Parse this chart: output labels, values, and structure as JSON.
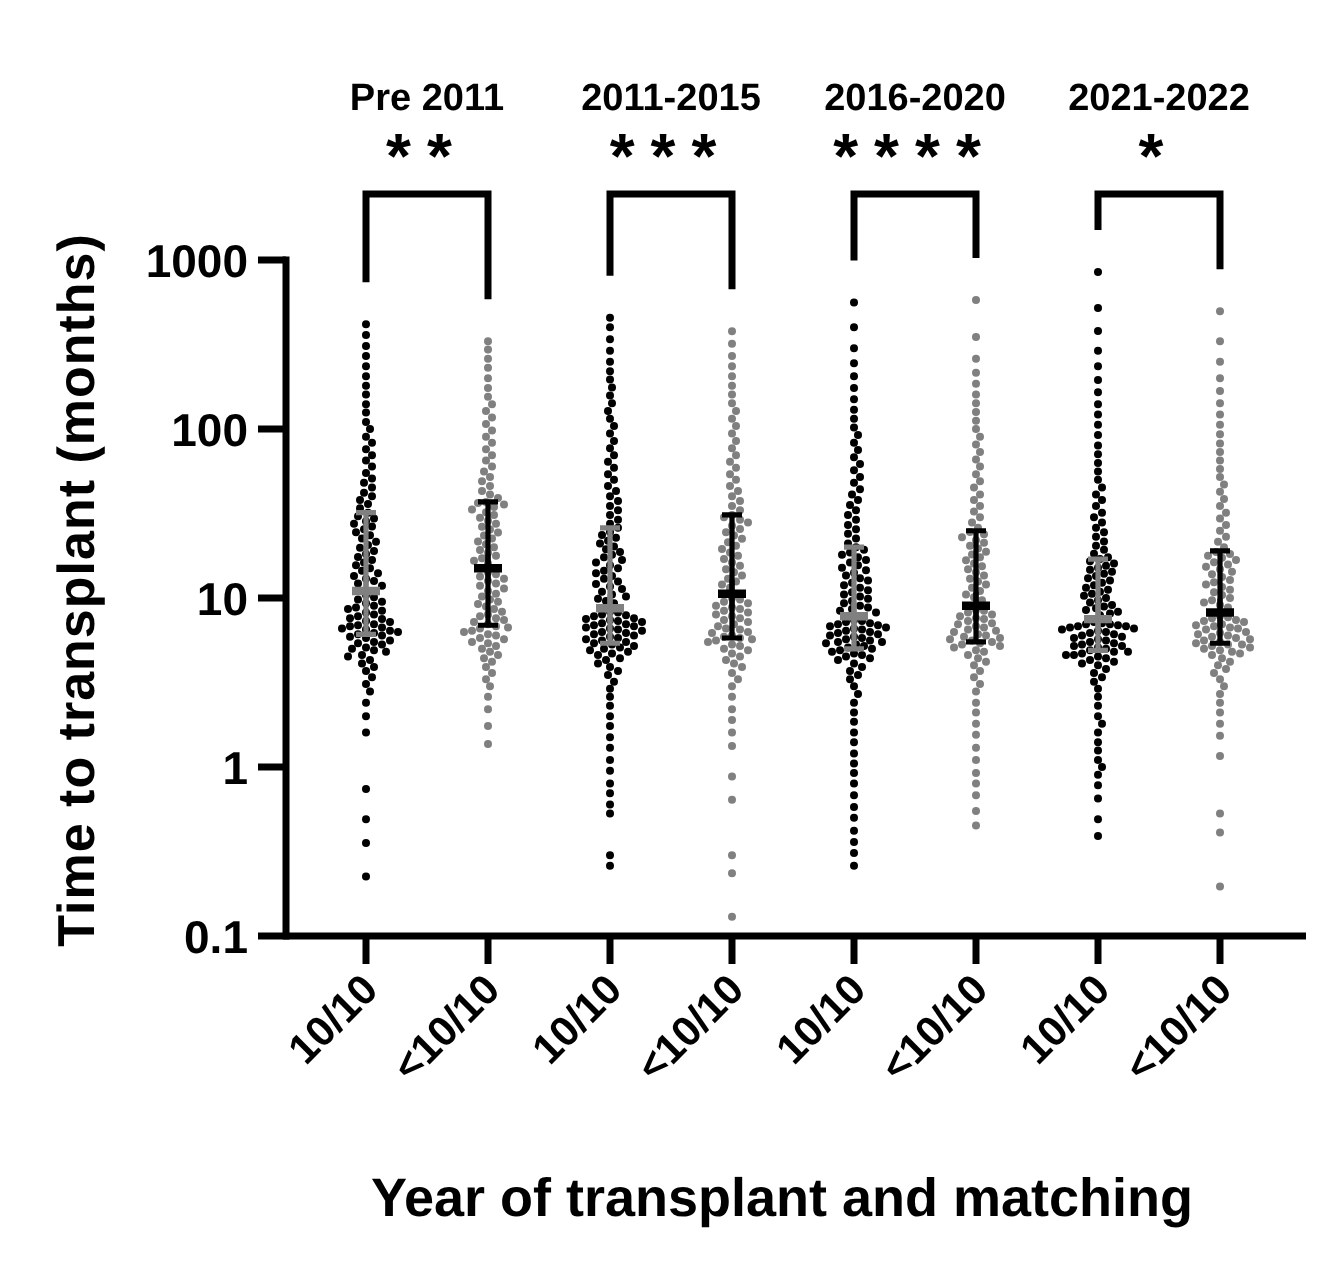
{
  "chart_data": [
    {
      "type": "scatter",
      "title": "Pre 2011",
      "ylabel": "Time to transplant (months)",
      "xlabel": "Year of transplant and matching",
      "categories": [
        "10/10",
        "<10/10"
      ],
      "log": true,
      "ylim": [
        0.1,
        1000
      ],
      "yticks": [
        0.1,
        1,
        10,
        100,
        1000
      ],
      "annotations": [
        "**"
      ],
      "series": [
        {
          "color": "#000000",
          "marker": "circle",
          "x": [
            "10/10",
            "10/10",
            "10/10",
            "10/10",
            "10/10",
            "10/10",
            "10/10",
            "10/10",
            "10/10",
            "10/10",
            "10/10",
            "10/10",
            "10/10",
            "10/10",
            "10/10",
            "10/10",
            "10/10",
            "10/10",
            "10/10",
            "10/10",
            "10/10",
            "10/10",
            "10/10",
            "10/10",
            "10/10",
            "10/10",
            "10/10",
            "10/10",
            "10/10",
            "10/10",
            "10/10",
            "10/10",
            "10/10",
            "10/10",
            "10/10",
            "10/10",
            "10/10",
            "10/10",
            "10/10",
            "10/10",
            "10/10",
            "10/10",
            "10/10",
            "10/10",
            "10/10",
            "10/10",
            "10/10",
            "10/10",
            "10/10",
            "10/10",
            "10/10",
            "10/10",
            "10/10",
            "10/10",
            "10/10",
            "10/10",
            "10/10",
            "10/10",
            "10/10",
            "10/10",
            "10/10",
            "10/10",
            "10/10",
            "10/10",
            "10/10",
            "10/10",
            "10/10",
            "10/10",
            "10/10",
            "10/10",
            "10/10",
            "10/10",
            "10/10",
            "10/10",
            "10/10",
            "10/10",
            "10/10",
            "10/10",
            "10/10",
            "10/10",
            "10/10",
            "10/10",
            "10/10",
            "10/10",
            "10/10",
            "10/10",
            "10/10",
            "10/10",
            "10/10",
            "10/10",
            "10/10",
            "10/10",
            "10/10",
            "10/10",
            "10/10",
            "10/10",
            "10/10",
            "10/10",
            "10/10",
            "10/10",
            "10/10",
            "10/10",
            "10/10",
            "10/10",
            "10/10",
            "10/10",
            "10/10"
          ],
          "values": [
            0.225,
            0.355,
            0.49,
            0.74,
            1.6,
            2.0,
            2.4,
            2.8,
            3.1,
            3.4,
            3.7,
            3.9,
            4.1,
            4.3,
            4.5,
            4.6,
            4.8,
            4.9,
            5.0,
            5.1,
            5.3,
            5.4,
            5.5,
            5.6,
            5.8,
            5.9,
            6.0,
            6.1,
            6.2,
            6.3,
            6.4,
            6.5,
            6.6,
            6.7,
            6.8,
            6.9,
            7.0,
            7.2,
            7.3,
            7.5,
            7.6,
            7.8,
            8.0,
            8.2,
            8.4,
            8.6,
            8.8,
            9.0,
            9.3,
            9.5,
            9.8,
            10.1,
            10.4,
            11.8,
            12.2,
            12.6,
            13,
            13.5,
            14,
            14.5,
            15,
            15.6,
            16.2,
            16.8,
            17.5,
            18.2,
            19,
            19.8,
            20.6,
            21.5,
            22.5,
            23.5,
            24.5,
            25.5,
            26.5,
            27.5,
            28.5,
            29.5,
            30.5,
            32,
            34,
            36,
            38,
            40,
            42,
            45,
            48,
            51,
            55,
            60,
            65,
            70,
            76,
            83,
            90,
            100,
            110,
            125,
            140,
            160,
            180,
            205,
            235,
            270,
            310,
            360,
            416
          ]
        },
        {
          "color": "#808080",
          "marker": "circle",
          "x": [
            "<10/10",
            "<10/10",
            "<10/10",
            "<10/10",
            "<10/10",
            "<10/10",
            "<10/10",
            "<10/10",
            "<10/10",
            "<10/10",
            "<10/10",
            "<10/10",
            "<10/10",
            "<10/10",
            "<10/10",
            "<10/10",
            "<10/10",
            "<10/10",
            "<10/10",
            "<10/10",
            "<10/10",
            "<10/10",
            "<10/10",
            "<10/10",
            "<10/10",
            "<10/10",
            "<10/10",
            "<10/10",
            "<10/10",
            "<10/10",
            "<10/10",
            "<10/10",
            "<10/10",
            "<10/10",
            "<10/10",
            "<10/10",
            "<10/10",
            "<10/10",
            "<10/10",
            "<10/10",
            "<10/10",
            "<10/10",
            "<10/10",
            "<10/10",
            "<10/10",
            "<10/10",
            "<10/10",
            "<10/10",
            "<10/10",
            "<10/10",
            "<10/10",
            "<10/10",
            "<10/10",
            "<10/10",
            "<10/10",
            "<10/10",
            "<10/10",
            "<10/10",
            "<10/10",
            "<10/10",
            "<10/10",
            "<10/10",
            "<10/10",
            "<10/10",
            "<10/10",
            "<10/10",
            "<10/10",
            "<10/10",
            "<10/10",
            "<10/10",
            "<10/10",
            "<10/10",
            "<10/10",
            "<10/10",
            "<10/10",
            "<10/10",
            "<10/10",
            "<10/10",
            "<10/10",
            "<10/10",
            "<10/10",
            "<10/10",
            "<10/10",
            "<10/10",
            "<10/10",
            "<10/10",
            "<10/10",
            "<10/10",
            "<10/10",
            "<10/10",
            "<10/10",
            "<10/10",
            "<10/10",
            "<10/10",
            "<10/10",
            "<10/10",
            "<10/10"
          ],
          "values": [
            1.37,
            1.75,
            2.2,
            2.6,
            3.0,
            3.3,
            3.6,
            3.9,
            4.2,
            4.4,
            4.6,
            4.8,
            5.0,
            5.2,
            5.4,
            5.5,
            5.7,
            5.8,
            6.0,
            6.1,
            6.3,
            6.4,
            6.6,
            6.7,
            6.8,
            7.0,
            7.2,
            7.4,
            7.6,
            7.8,
            8.0,
            8.3,
            8.6,
            8.9,
            9.2,
            9.5,
            9.8,
            10.2,
            10.6,
            11,
            11.4,
            11.8,
            12.2,
            12.6,
            13,
            13.4,
            13.8,
            14.2,
            16,
            16.6,
            17.2,
            17.8,
            18.5,
            19.2,
            20,
            20.8,
            21.6,
            22.5,
            23.4,
            24.4,
            25.4,
            26.4,
            27.5,
            28.6,
            29.8,
            31,
            32.2,
            33.4,
            34.6,
            35.8,
            36.5,
            37,
            39,
            41,
            43,
            46,
            49,
            52,
            56,
            60,
            65,
            70,
            76,
            83,
            90,
            98,
            107,
            117,
            128,
            140,
            155,
            175,
            200,
            230,
            260,
            295,
            330
          ]
        },
        {
          "colors": [
            "#808080",
            "#000000"
          ],
          "marker": "cross",
          "values": [
            11,
            15
          ],
          "errors": [
            [
              6.1,
              32
            ],
            [
              6.9,
              37
            ]
          ]
        }
      ]
    },
    {
      "type": "scatter",
      "title": "2011-2015",
      "categories": [
        "10/10",
        "<10/10"
      ],
      "log": true,
      "ylim": [
        0.1,
        1000
      ],
      "tick_labels": "x",
      "annotations": [
        "***"
      ],
      "series": [
        {
          "color": "#000000",
          "marker": "circle",
          "x": [
            "10/10",
            "10/10",
            "10/10",
            "10/10",
            "10/10",
            "10/10",
            "10/10",
            "10/10",
            "10/10",
            "10/10",
            "10/10",
            "10/10",
            "10/10",
            "10/10",
            "10/10",
            "10/10",
            "10/10",
            "10/10",
            "10/10",
            "10/10",
            "10/10",
            "10/10",
            "10/10",
            "10/10",
            "10/10",
            "10/10",
            "10/10",
            "10/10",
            "10/10",
            "10/10",
            "10/10",
            "10/10",
            "10/10",
            "10/10",
            "10/10",
            "10/10",
            "10/10",
            "10/10",
            "10/10",
            "10/10",
            "10/10",
            "10/10",
            "10/10",
            "10/10",
            "10/10",
            "10/10",
            "10/10",
            "10/10",
            "10/10",
            "10/10",
            "10/10",
            "10/10",
            "10/10",
            "10/10",
            "10/10",
            "10/10",
            "10/10",
            "10/10",
            "10/10",
            "10/10",
            "10/10",
            "10/10",
            "10/10",
            "10/10",
            "10/10",
            "10/10",
            "10/10",
            "10/10",
            "10/10",
            "10/10",
            "10/10",
            "10/10",
            "10/10",
            "10/10",
            "10/10",
            "10/10",
            "10/10",
            "10/10",
            "10/10",
            "10/10",
            "10/10",
            "10/10",
            "10/10",
            "10/10",
            "10/10",
            "10/10",
            "10/10",
            "10/10",
            "10/10",
            "10/10",
            "10/10",
            "10/10",
            "10/10",
            "10/10",
            "10/10",
            "10/10",
            "10/10",
            "10/10",
            "10/10",
            "10/10",
            "10/10",
            "10/10",
            "10/10",
            "10/10",
            "10/10",
            "10/10",
            "10/10",
            "10/10",
            "10/10",
            "10/10",
            "10/10",
            "10/10",
            "10/10",
            "10/10",
            "10/10",
            "10/10",
            "10/10"
          ],
          "values": [
            0.26,
            0.3,
            0.53,
            0.6,
            0.7,
            0.8,
            0.95,
            1.1,
            1.3,
            1.5,
            1.75,
            2.0,
            2.3,
            2.6,
            2.9,
            3.2,
            3.5,
            3.7,
            3.9,
            4.1,
            4.3,
            4.4,
            4.6,
            4.7,
            4.8,
            4.9,
            5.0,
            5.1,
            5.2,
            5.3,
            5.4,
            5.5,
            5.6,
            5.7,
            5.8,
            5.9,
            6.0,
            6.1,
            6.2,
            6.3,
            6.4,
            6.5,
            6.6,
            6.7,
            6.8,
            6.9,
            7.0,
            7.1,
            7.2,
            7.3,
            7.4,
            7.5,
            7.6,
            7.8,
            7.9,
            8.0,
            8.2,
            8.3,
            9.3,
            9.6,
            9.9,
            10.2,
            10.5,
            10.9,
            11.3,
            11.7,
            12.1,
            12.5,
            13,
            13.5,
            14,
            14.5,
            15,
            15.6,
            16.2,
            16.8,
            17.4,
            18,
            18.7,
            19.4,
            20.2,
            21,
            21.8,
            22.7,
            23.6,
            24.6,
            26,
            27.5,
            29,
            31,
            33,
            35,
            37.5,
            40,
            43,
            46,
            50,
            54,
            59,
            64,
            70,
            77,
            85,
            94,
            104,
            115,
            128,
            142,
            158,
            176,
            196,
            220,
            250,
            290,
            340,
            400,
            455
          ]
        },
        {
          "color": "#808080",
          "marker": "circle",
          "x": [
            "<10/10",
            "<10/10",
            "<10/10",
            "<10/10",
            "<10/10",
            "<10/10",
            "<10/10",
            "<10/10",
            "<10/10",
            "<10/10",
            "<10/10",
            "<10/10",
            "<10/10",
            "<10/10",
            "<10/10",
            "<10/10",
            "<10/10",
            "<10/10",
            "<10/10",
            "<10/10",
            "<10/10",
            "<10/10",
            "<10/10",
            "<10/10",
            "<10/10",
            "<10/10",
            "<10/10",
            "<10/10",
            "<10/10",
            "<10/10",
            "<10/10",
            "<10/10",
            "<10/10",
            "<10/10",
            "<10/10",
            "<10/10",
            "<10/10",
            "<10/10",
            "<10/10",
            "<10/10",
            "<10/10",
            "<10/10",
            "<10/10",
            "<10/10",
            "<10/10",
            "<10/10",
            "<10/10",
            "<10/10",
            "<10/10",
            "<10/10",
            "<10/10",
            "<10/10",
            "<10/10",
            "<10/10",
            "<10/10",
            "<10/10",
            "<10/10",
            "<10/10",
            "<10/10",
            "<10/10",
            "<10/10",
            "<10/10",
            "<10/10",
            "<10/10",
            "<10/10",
            "<10/10",
            "<10/10",
            "<10/10",
            "<10/10",
            "<10/10",
            "<10/10",
            "<10/10",
            "<10/10",
            "<10/10",
            "<10/10",
            "<10/10",
            "<10/10",
            "<10/10",
            "<10/10",
            "<10/10",
            "<10/10",
            "<10/10",
            "<10/10",
            "<10/10",
            "<10/10",
            "<10/10",
            "<10/10",
            "<10/10",
            "<10/10",
            "<10/10",
            "<10/10",
            "<10/10",
            "<10/10",
            "<10/10",
            "<10/10",
            "<10/10",
            "<10/10"
          ],
          "values": [
            0.13,
            0.235,
            0.3,
            0.64,
            0.88,
            1.33,
            1.6,
            1.9,
            2.2,
            2.6,
            3.0,
            3.3,
            3.6,
            3.9,
            4.1,
            4.3,
            4.5,
            4.7,
            4.9,
            5.0,
            5.2,
            5.3,
            5.5,
            5.6,
            5.7,
            5.8,
            5.9,
            6.0,
            6.2,
            6.3,
            6.5,
            6.6,
            6.8,
            7.0,
            7.2,
            7.4,
            7.6,
            7.8,
            8.0,
            8.2,
            8.4,
            8.6,
            8.8,
            9.0,
            9.3,
            9.5,
            9.8,
            10.0,
            11.5,
            12,
            12.5,
            13,
            13.6,
            14.2,
            14.8,
            15.5,
            16.2,
            17,
            17.8,
            18.6,
            19.5,
            20.4,
            21.4,
            22.4,
            23.4,
            24.5,
            25.6,
            26.8,
            28,
            29,
            30,
            31,
            33,
            35,
            37.5,
            40,
            43,
            46,
            50,
            54,
            59,
            64,
            70,
            77,
            85,
            94,
            104,
            115,
            128,
            142,
            160,
            180,
            205,
            235,
            270,
            320,
            379
          ]
        },
        {
          "colors": [
            "#808080",
            "#000000"
          ],
          "marker": "cross",
          "values": [
            8.7,
            10.6
          ],
          "errors": [
            [
              5.4,
              26
            ],
            [
              5.8,
              31
            ]
          ]
        }
      ]
    },
    {
      "type": "scatter",
      "title": "2016-2020",
      "categories": [
        "10/10",
        "<10/10"
      ],
      "log": true,
      "ylim": [
        0.1,
        1000
      ],
      "tick_labels": "x",
      "annotations": [
        "****"
      ],
      "series": [
        {
          "color": "#000000",
          "marker": "circle",
          "x": [
            "10/10",
            "10/10",
            "10/10",
            "10/10",
            "10/10",
            "10/10",
            "10/10",
            "10/10",
            "10/10",
            "10/10",
            "10/10",
            "10/10",
            "10/10",
            "10/10",
            "10/10",
            "10/10",
            "10/10",
            "10/10",
            "10/10",
            "10/10",
            "10/10",
            "10/10",
            "10/10",
            "10/10",
            "10/10",
            "10/10",
            "10/10",
            "10/10",
            "10/10",
            "10/10",
            "10/10",
            "10/10",
            "10/10",
            "10/10",
            "10/10",
            "10/10",
            "10/10",
            "10/10",
            "10/10",
            "10/10",
            "10/10",
            "10/10",
            "10/10",
            "10/10",
            "10/10",
            "10/10",
            "10/10",
            "10/10",
            "10/10",
            "10/10",
            "10/10",
            "10/10",
            "10/10",
            "10/10",
            "10/10",
            "10/10",
            "10/10",
            "10/10",
            "10/10",
            "10/10",
            "10/10",
            "10/10",
            "10/10",
            "10/10",
            "10/10",
            "10/10",
            "10/10",
            "10/10",
            "10/10",
            "10/10",
            "10/10",
            "10/10",
            "10/10",
            "10/10",
            "10/10",
            "10/10",
            "10/10",
            "10/10",
            "10/10",
            "10/10",
            "10/10",
            "10/10",
            "10/10",
            "10/10",
            "10/10",
            "10/10",
            "10/10",
            "10/10",
            "10/10",
            "10/10",
            "10/10",
            "10/10",
            "10/10",
            "10/10",
            "10/10",
            "10/10",
            "10/10",
            "10/10",
            "10/10",
            "10/10",
            "10/10",
            "10/10",
            "10/10",
            "10/10",
            "10/10",
            "10/10",
            "10/10",
            "10/10",
            "10/10",
            "10/10",
            "10/10",
            "10/10",
            "10/10",
            "10/10",
            "10/10"
          ],
          "values": [
            0.26,
            0.31,
            0.36,
            0.42,
            0.5,
            0.58,
            0.68,
            0.8,
            0.92,
            1.05,
            1.2,
            1.4,
            1.6,
            1.85,
            2.1,
            2.4,
            2.7,
            3.0,
            3.3,
            3.5,
            3.7,
            3.9,
            4.1,
            4.3,
            4.4,
            4.5,
            4.6,
            4.7,
            4.8,
            4.9,
            5.0,
            5.1,
            5.2,
            5.3,
            5.4,
            5.5,
            5.5,
            5.6,
            5.7,
            5.8,
            5.9,
            6.0,
            6.1,
            6.2,
            6.3,
            6.4,
            6.5,
            6.6,
            6.7,
            6.8,
            6.9,
            7.0,
            7.1,
            7.2,
            7.3,
            7.4,
            8.2,
            8.4,
            8.6,
            8.8,
            9.0,
            9.3,
            9.6,
            9.9,
            10.2,
            10.5,
            10.8,
            11.1,
            11.5,
            11.9,
            12.3,
            12.7,
            13.1,
            13.6,
            14.1,
            14.6,
            15.1,
            15.6,
            16.2,
            16.8,
            17.4,
            18,
            18.6,
            19.3,
            20,
            21,
            22.5,
            24,
            25.5,
            27,
            29,
            31,
            33,
            35.5,
            38,
            41,
            44,
            48,
            52,
            57,
            62,
            68,
            75,
            83,
            92,
            102,
            115,
            130,
            150,
            175,
            205,
            245,
            300,
            400,
            560
          ]
        },
        {
          "color": "#808080",
          "marker": "circle",
          "x": [
            "<10/10",
            "<10/10",
            "<10/10",
            "<10/10",
            "<10/10",
            "<10/10",
            "<10/10",
            "<10/10",
            "<10/10",
            "<10/10",
            "<10/10",
            "<10/10",
            "<10/10",
            "<10/10",
            "<10/10",
            "<10/10",
            "<10/10",
            "<10/10",
            "<10/10",
            "<10/10",
            "<10/10",
            "<10/10",
            "<10/10",
            "<10/10",
            "<10/10",
            "<10/10",
            "<10/10",
            "<10/10",
            "<10/10",
            "<10/10",
            "<10/10",
            "<10/10",
            "<10/10",
            "<10/10",
            "<10/10",
            "<10/10",
            "<10/10",
            "<10/10",
            "<10/10",
            "<10/10",
            "<10/10",
            "<10/10",
            "<10/10",
            "<10/10",
            "<10/10",
            "<10/10",
            "<10/10",
            "<10/10",
            "<10/10",
            "<10/10",
            "<10/10",
            "<10/10",
            "<10/10",
            "<10/10",
            "<10/10",
            "<10/10",
            "<10/10",
            "<10/10",
            "<10/10",
            "<10/10",
            "<10/10",
            "<10/10",
            "<10/10",
            "<10/10",
            "<10/10",
            "<10/10",
            "<10/10",
            "<10/10",
            "<10/10",
            "<10/10",
            "<10/10",
            "<10/10",
            "<10/10",
            "<10/10",
            "<10/10",
            "<10/10",
            "<10/10",
            "<10/10",
            "<10/10",
            "<10/10",
            "<10/10",
            "<10/10",
            "<10/10",
            "<10/10",
            "<10/10",
            "<10/10",
            "<10/10",
            "<10/10",
            "<10/10",
            "<10/10",
            "<10/10",
            "<10/10",
            "<10/10",
            "<10/10",
            "<10/10",
            "<10/10"
          ],
          "values": [
            0.45,
            0.55,
            0.68,
            0.8,
            0.92,
            1.1,
            1.3,
            1.55,
            1.8,
            2.1,
            2.4,
            2.8,
            3.1,
            3.4,
            3.7,
            4.0,
            4.2,
            4.4,
            4.6,
            4.8,
            4.9,
            5.1,
            5.2,
            5.3,
            5.4,
            5.5,
            5.6,
            5.7,
            5.8,
            5.9,
            6.0,
            6.1,
            6.3,
            6.4,
            6.5,
            6.7,
            6.8,
            7.0,
            7.1,
            7.3,
            7.5,
            7.6,
            7.8,
            8.0,
            8.2,
            8.4,
            8.5,
            9.7,
            10.1,
            10.5,
            11,
            11.5,
            12,
            12.5,
            13,
            13.6,
            14.2,
            14.8,
            15.4,
            16,
            16.7,
            17.4,
            18.1,
            18.8,
            19.6,
            20.4,
            21.2,
            22,
            22.9,
            23.8,
            24.6,
            26,
            28,
            30,
            32.5,
            35,
            38,
            41,
            45,
            49,
            54,
            60,
            66,
            73,
            81,
            90,
            100,
            112,
            126,
            142,
            160,
            185,
            215,
            260,
            350,
            580
          ]
        },
        {
          "colors": [
            "#808080",
            "#000000"
          ],
          "marker": "cross",
          "values": [
            7.8,
            9.0
          ],
          "errors": [
            [
              5.0,
              20
            ],
            [
              5.5,
              25
            ]
          ]
        }
      ]
    },
    {
      "type": "scatter",
      "title": "2021-2022",
      "categories": [
        "10/10",
        "<10/10"
      ],
      "log": true,
      "ylim": [
        0.1,
        1000
      ],
      "tick_labels": "x",
      "annotations": [
        "*"
      ],
      "series": [
        {
          "color": "#000000",
          "marker": "circle",
          "x": [
            "10/10",
            "10/10",
            "10/10",
            "10/10",
            "10/10",
            "10/10",
            "10/10",
            "10/10",
            "10/10",
            "10/10",
            "10/10",
            "10/10",
            "10/10",
            "10/10",
            "10/10",
            "10/10",
            "10/10",
            "10/10",
            "10/10",
            "10/10",
            "10/10",
            "10/10",
            "10/10",
            "10/10",
            "10/10",
            "10/10",
            "10/10",
            "10/10",
            "10/10",
            "10/10",
            "10/10",
            "10/10",
            "10/10",
            "10/10",
            "10/10",
            "10/10",
            "10/10",
            "10/10",
            "10/10",
            "10/10",
            "10/10",
            "10/10",
            "10/10",
            "10/10",
            "10/10",
            "10/10",
            "10/10",
            "10/10",
            "10/10",
            "10/10",
            "10/10",
            "10/10",
            "10/10",
            "10/10",
            "10/10",
            "10/10",
            "10/10",
            "10/10",
            "10/10",
            "10/10",
            "10/10",
            "10/10",
            "10/10",
            "10/10",
            "10/10",
            "10/10",
            "10/10",
            "10/10",
            "10/10",
            "10/10",
            "10/10",
            "10/10",
            "10/10",
            "10/10",
            "10/10",
            "10/10",
            "10/10",
            "10/10",
            "10/10",
            "10/10",
            "10/10",
            "10/10",
            "10/10",
            "10/10",
            "10/10",
            "10/10",
            "10/10",
            "10/10",
            "10/10",
            "10/10",
            "10/10",
            "10/10",
            "10/10",
            "10/10",
            "10/10",
            "10/10",
            "10/10",
            "10/10",
            "10/10",
            "10/10",
            "10/10",
            "10/10",
            "10/10",
            "10/10",
            "10/10",
            "10/10",
            "10/10",
            "10/10",
            "10/10",
            "10/10",
            "10/10",
            "10/10",
            "10/10",
            "10/10",
            "10/10",
            "10/10"
          ],
          "values": [
            0.39,
            0.49,
            0.65,
            0.78,
            0.9,
            1.0,
            1.1,
            1.25,
            1.4,
            1.6,
            1.8,
            2.0,
            2.3,
            2.6,
            2.9,
            3.2,
            3.4,
            3.6,
            3.8,
            4.0,
            4.1,
            4.2,
            4.3,
            4.4,
            4.5,
            4.6,
            4.6,
            4.7,
            4.8,
            4.8,
            4.9,
            5.0,
            5.1,
            5.2,
            5.2,
            5.3,
            5.4,
            5.5,
            5.6,
            5.7,
            5.8,
            5.9,
            6.0,
            6.1,
            6.2,
            6.3,
            6.4,
            6.5,
            6.6,
            6.7,
            6.8,
            6.8,
            6.9,
            7.0,
            7.0,
            7.1,
            7.2,
            7.9,
            8.1,
            8.3,
            8.5,
            8.7,
            8.9,
            9.1,
            9.4,
            9.7,
            10,
            10.3,
            10.6,
            10.9,
            11.2,
            11.5,
            11.9,
            12.3,
            12.7,
            13.1,
            13.5,
            13.9,
            14.3,
            14.7,
            15.1,
            15.5,
            16,
            16.5,
            17,
            17.4,
            18.3,
            19.3,
            20.4,
            21.6,
            23,
            24.5,
            26,
            28,
            30,
            32,
            35,
            38,
            41,
            45,
            50,
            56,
            63,
            71,
            80,
            92,
            106,
            122,
            140,
            165,
            195,
            235,
            290,
            380,
            520,
            850
          ]
        },
        {
          "color": "#808080",
          "marker": "circle",
          "x": [
            "<10/10",
            "<10/10",
            "<10/10",
            "<10/10",
            "<10/10",
            "<10/10",
            "<10/10",
            "<10/10",
            "<10/10",
            "<10/10",
            "<10/10",
            "<10/10",
            "<10/10",
            "<10/10",
            "<10/10",
            "<10/10",
            "<10/10",
            "<10/10",
            "<10/10",
            "<10/10",
            "<10/10",
            "<10/10",
            "<10/10",
            "<10/10",
            "<10/10",
            "<10/10",
            "<10/10",
            "<10/10",
            "<10/10",
            "<10/10",
            "<10/10",
            "<10/10",
            "<10/10",
            "<10/10",
            "<10/10",
            "<10/10",
            "<10/10",
            "<10/10",
            "<10/10",
            "<10/10",
            "<10/10",
            "<10/10",
            "<10/10",
            "<10/10",
            "<10/10",
            "<10/10",
            "<10/10",
            "<10/10",
            "<10/10",
            "<10/10",
            "<10/10",
            "<10/10",
            "<10/10",
            "<10/10",
            "<10/10",
            "<10/10",
            "<10/10",
            "<10/10",
            "<10/10",
            "<10/10",
            "<10/10",
            "<10/10",
            "<10/10",
            "<10/10",
            "<10/10",
            "<10/10",
            "<10/10",
            "<10/10",
            "<10/10",
            "<10/10",
            "<10/10",
            "<10/10",
            "<10/10",
            "<10/10",
            "<10/10",
            "<10/10",
            "<10/10",
            "<10/10",
            "<10/10",
            "<10/10",
            "<10/10",
            "<10/10",
            "<10/10",
            "<10/10",
            "<10/10",
            "<10/10",
            "<10/10",
            "<10/10",
            "<10/10",
            "<10/10",
            "<10/10",
            "<10/10",
            "<10/10",
            "<10/10",
            "<10/10",
            "<10/10"
          ],
          "values": [
            0.196,
            0.41,
            0.53,
            1.16,
            1.53,
            1.8,
            2.1,
            2.4,
            2.7,
            3.0,
            3.3,
            3.6,
            3.8,
            4.0,
            4.2,
            4.4,
            4.6,
            4.7,
            4.8,
            4.9,
            5.0,
            5.1,
            5.2,
            5.3,
            5.3,
            5.4,
            5.5,
            5.6,
            5.7,
            5.8,
            5.9,
            6.0,
            6.1,
            6.2,
            6.3,
            6.5,
            6.6,
            6.7,
            6.8,
            6.9,
            7.0,
            7.2,
            7.3,
            7.4,
            7.6,
            7.7,
            7.8,
            8.8,
            9.1,
            9.4,
            9.7,
            10,
            10.4,
            10.8,
            11.2,
            11.6,
            12,
            12.4,
            12.8,
            13.3,
            13.8,
            14.3,
            14.8,
            15.3,
            15.8,
            16.3,
            16.8,
            17.3,
            17.8,
            18.2,
            18.7,
            20,
            21.5,
            23,
            25,
            27,
            29.5,
            32,
            35,
            38.5,
            42.5,
            47,
            52,
            58,
            65,
            73,
            82,
            93,
            106,
            122,
            142,
            168,
            200,
            250,
            330,
            498
          ]
        },
        {
          "colors": [
            "#808080",
            "#000000"
          ],
          "marker": "cross",
          "values": [
            7.5,
            8.2
          ],
          "errors": [
            [
              4.9,
              17
            ],
            [
              5.4,
              19
            ]
          ]
        }
      ]
    }
  ]
}
